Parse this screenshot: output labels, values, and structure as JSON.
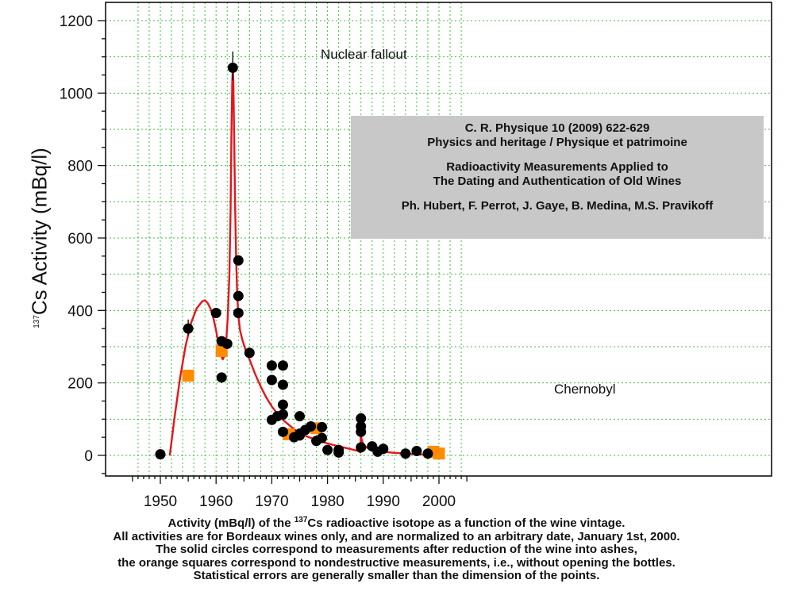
{
  "chart_data": {
    "type": "scatter",
    "ylabel_prefix": "137",
    "ylabel": "Cs Activity (mBq/l)",
    "xlim": [
      1945,
      2005
    ],
    "ylim": [
      -50,
      1230
    ],
    "xticks": [
      1950,
      1960,
      1970,
      1980,
      1990,
      2000
    ],
    "yticks": [
      0,
      200,
      400,
      600,
      800,
      1000,
      1200
    ],
    "grid": true,
    "series": [
      {
        "marker": "circle",
        "color": "#000000",
        "x": [
          1950,
          1955,
          1960,
          1961,
          1961,
          1962,
          1963,
          1964,
          1964,
          1964,
          1966,
          1970,
          1970,
          1970,
          1971,
          1972,
          1972,
          1972,
          1972,
          1972,
          1974,
          1975,
          1975,
          1975,
          1976,
          1977,
          1978,
          1979,
          1979,
          1980,
          1982,
          1982,
          1986,
          1986,
          1986,
          1986,
          1988,
          1989,
          1990,
          1994,
          1996,
          1998
        ],
        "y": [
          3,
          350,
          393,
          315,
          215,
          308,
          1070,
          538,
          440,
          393,
          283,
          248,
          208,
          98,
          108,
          248,
          195,
          140,
          113,
          65,
          50,
          108,
          60,
          55,
          70,
          80,
          40,
          78,
          48,
          15,
          15,
          8,
          102,
          80,
          65,
          22,
          25,
          10,
          18,
          5,
          12,
          5
        ]
      },
      {
        "marker": "square",
        "color": "#ff8c00",
        "x": [
          1955,
          1961,
          1973,
          1978,
          1999,
          2000
        ],
        "y": [
          220,
          288,
          58,
          75,
          10,
          5
        ]
      },
      {
        "type": "line",
        "color": "#e8141c",
        "x": [
          1951.7,
          1952.5,
          1953.5,
          1954.5,
          1955.5,
          1956.5,
          1957.5,
          1958,
          1958.5,
          1959,
          1959.5,
          1960,
          1960.4,
          1960.8,
          1961.2,
          1961.5,
          1961.8,
          1962.1,
          1962.4,
          1962.6,
          1962.75,
          1962.9,
          1963,
          1963.1,
          1963.25,
          1963.4,
          1963.6,
          1963.8,
          1964,
          1964.3,
          1964.7,
          1965.2,
          1966,
          1967,
          1968,
          1969,
          1970,
          1971,
          1972,
          1973,
          1974,
          1975,
          1976,
          1978,
          1980,
          1982,
          1984,
          1985.5,
          1985.9,
          1986,
          1986.1,
          1986.3,
          1986.6,
          1987,
          1988,
          1990,
          1992,
          1994,
          1996,
          1998,
          2000
        ],
        "y": [
          0,
          100,
          210,
          300,
          365,
          405,
          425,
          428,
          420,
          405,
          380,
          345,
          310,
          280,
          265,
          275,
          310,
          380,
          500,
          680,
          880,
          1030,
          1070,
          1030,
          880,
          700,
          540,
          440,
          385,
          345,
          320,
          295,
          265,
          225,
          190,
          160,
          135,
          115,
          98,
          85,
          72,
          62,
          54,
          42,
          33,
          25,
          18,
          12,
          8,
          70,
          45,
          35,
          28,
          22,
          15,
          10,
          7,
          5,
          3,
          1,
          0
        ]
      }
    ],
    "annotations": [
      "Nuclear fallout",
      "Chernobyl"
    ]
  },
  "info_box": {
    "lines": [
      "C. R. Physique 10 (2009) 622-629",
      "Physics and heritage / Physique et patrimoine",
      "",
      "Radioactivity Measurements Applied to",
      "The Dating and Authentication of Old Wines",
      "",
      "Ph. Hubert, F. Perrot, J. Gaye, B. Medina, M.S. Pravikoff"
    ]
  },
  "caption": {
    "line1_before": "Activity (mBq/l) of the ",
    "line1_sup": "137",
    "line1_after": "Cs radioactive isotope as a function of the wine vintage.",
    "line2": "All activities are for Bordeaux wines only, and are normalized to an arbitrary date, January 1st, 2000.",
    "line3": "The solid circles correspond to measurements after reduction of the wine into ashes,",
    "line4": "the orange squares correspond to nondestructive measurements, i.e., without opening the bottles.",
    "line5": "Statistical errors are generally smaller than the dimension of the points."
  }
}
